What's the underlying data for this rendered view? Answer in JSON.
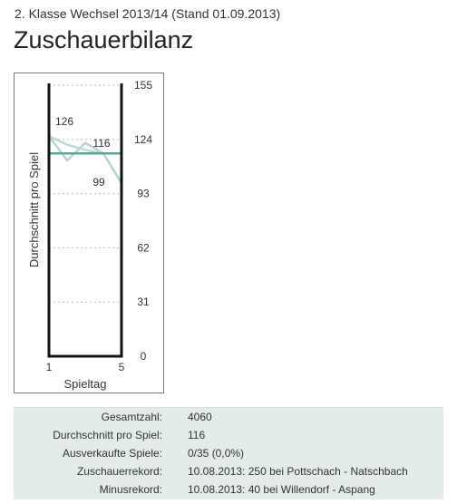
{
  "header": {
    "subtitle": "2. Klasse Wechsel 2013/14 (Stand 01.09.2013)",
    "title": "Zuschauerbilanz"
  },
  "chart_data": {
    "type": "line",
    "ylabel": "Durchschnitt pro Spiel",
    "xlabel": "Spieltag",
    "ylim": [
      0,
      155
    ],
    "yticks": [
      "155",
      "124",
      "93",
      "62",
      "31",
      "0"
    ],
    "xticks": [
      "1",
      "5"
    ],
    "x": [
      1,
      2,
      3,
      4,
      5
    ],
    "series": [
      {
        "values": [
          126,
          112,
          122,
          116,
          99
        ],
        "color": "#b9d4cd"
      },
      {
        "values": [
          126,
          121,
          118,
          116,
          116
        ],
        "color": "#c3dad3"
      }
    ],
    "average": {
      "value": 116,
      "color": "#5fa898"
    },
    "annotations": [
      {
        "x": 1,
        "y": 126,
        "text": "126"
      },
      {
        "x": 4,
        "y": 116,
        "text": "116"
      },
      {
        "x": 4,
        "y": 99,
        "text": "99"
      }
    ],
    "grid": true
  },
  "stats": [
    {
      "label": "Gesamtzahl:",
      "value": "4060"
    },
    {
      "label": "Durchschnitt pro Spiel:",
      "value": "116"
    },
    {
      "label": "Ausverkaufte Spiele:",
      "value": "0/35 (0,0%)"
    },
    {
      "label": "Zuschauerrekord:",
      "value": "10.08.2013: 250 bei Pottschach - Natschbach"
    },
    {
      "label": "Minusrekord:",
      "value": "10.08.2013: 40 bei Willendorf - Aspang"
    }
  ]
}
